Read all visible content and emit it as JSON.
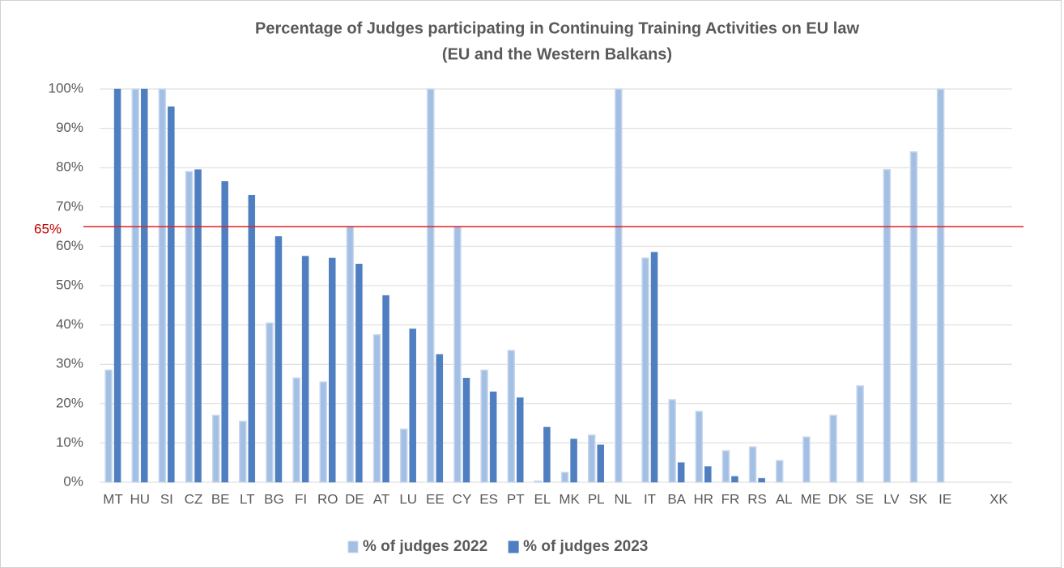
{
  "chart_data": {
    "type": "bar",
    "title": [
      "Percentage of Judges participating in Continuing  Training Activities on EU law",
      "(EU and the Western Balkans)"
    ],
    "categories": [
      "MT",
      "HU",
      "SI",
      "CZ",
      "BE",
      "LT",
      "BG",
      "FI",
      "RO",
      "DE",
      "AT",
      "LU",
      "EE",
      "CY",
      "ES",
      "PT",
      "EL",
      "MK",
      "PL",
      "NL",
      "IT",
      "BA",
      "HR",
      "FR",
      "RS",
      "AL",
      "ME",
      "DK",
      "SE",
      "LV",
      "SK",
      "IE",
      null,
      "XK"
    ],
    "series": [
      {
        "name": "% of judges 2022",
        "color": "#a3bfe4",
        "values": [
          28.5,
          100,
          100,
          79,
          17,
          15.5,
          40.5,
          26.5,
          25.5,
          65,
          37.5,
          13.5,
          100,
          65,
          28.5,
          33.5,
          0.3,
          2.5,
          12,
          100,
          57,
          21,
          18,
          8,
          9,
          5.5,
          11.5,
          17,
          24.5,
          79.5,
          84,
          100,
          null,
          null
        ]
      },
      {
        "name": "% of judges 2023",
        "color": "#4f7fc0",
        "values": [
          100,
          100,
          95.5,
          79.5,
          76.5,
          73,
          62.5,
          57.5,
          57,
          55.5,
          47.5,
          39,
          32.5,
          26.5,
          23,
          21.5,
          14,
          11,
          9.5,
          null,
          58.5,
          5,
          4,
          1.5,
          1,
          null,
          null,
          null,
          null,
          null,
          null,
          null,
          null,
          null
        ]
      }
    ],
    "ylim": [
      0,
      100
    ],
    "yticks": [
      {
        "value": 0,
        "label": "0%"
      },
      {
        "value": 10,
        "label": "10%"
      },
      {
        "value": 20,
        "label": "20%"
      },
      {
        "value": 30,
        "label": "30%"
      },
      {
        "value": 40,
        "label": "40%"
      },
      {
        "value": 50,
        "label": "50%"
      },
      {
        "value": 60,
        "label": "60%"
      },
      {
        "value": 70,
        "label": "70%"
      },
      {
        "value": 80,
        "label": "80%"
      },
      {
        "value": 90,
        "label": "90%"
      },
      {
        "value": 100,
        "label": "100%"
      }
    ],
    "grid": true,
    "reference_line": {
      "value": 65,
      "label": "65%",
      "color": "#e02020"
    },
    "legend": "bottom"
  }
}
